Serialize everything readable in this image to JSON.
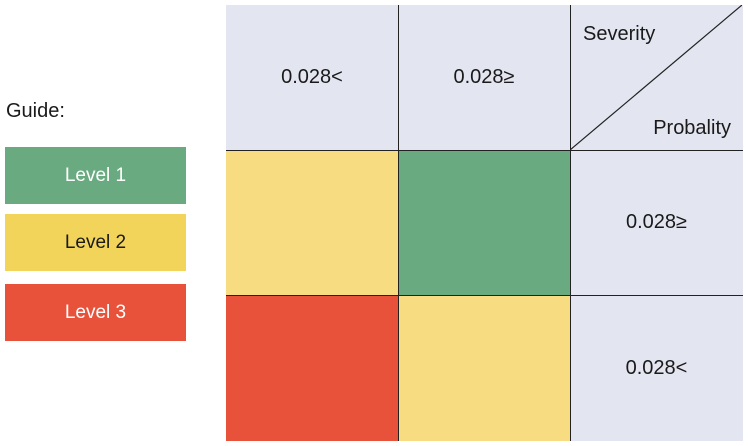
{
  "guide": {
    "title": "Guide:",
    "levels": [
      {
        "label": "Level 1",
        "color": "#6aaa80",
        "text_color": "#ffffff"
      },
      {
        "label": "Level 2",
        "color": "#f3d45a",
        "text_color": "#1a1a1a"
      },
      {
        "label": "Level 3",
        "color": "#e8523a",
        "text_color": "#ffffff"
      }
    ]
  },
  "matrix": {
    "corner": {
      "top_label": "Severity",
      "bottom_label": "Probality"
    },
    "severity_headers": [
      "0.028<",
      "0.028≥"
    ],
    "probability_headers": [
      "0.028≥",
      "0.028<"
    ],
    "header_color": "#e3e6f1",
    "cells": [
      [
        "#f7dc82",
        "#6aaa80"
      ],
      [
        "#e8523a",
        "#f7dc82"
      ]
    ]
  }
}
